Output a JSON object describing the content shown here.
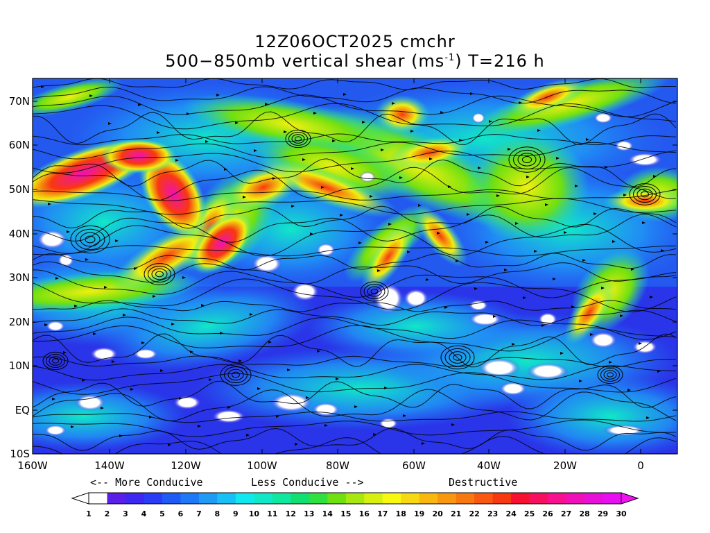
{
  "title": {
    "line1": "12Z06OCT2025 cmchr",
    "line2_prefix": "500−850mb vertical shear (ms",
    "line2_sup": "-1",
    "line2_suffix": ") T=216 h"
  },
  "map": {
    "type": "wind shear map with streamlines",
    "lon_range": [
      "160W",
      "10E"
    ],
    "lat_range": [
      "10S",
      "75N"
    ],
    "lon_ticks": [
      "160W",
      "140W",
      "120W",
      "100W",
      "80W",
      "60W",
      "40W",
      "20W",
      "0"
    ],
    "lat_ticks": [
      "10S",
      "EQ",
      "10N",
      "20N",
      "30N",
      "40N",
      "50N",
      "60N",
      "70N"
    ]
  },
  "legend": {
    "more_conducive": "<-- More Conducive",
    "less_conducive": "Less Conducive -->",
    "destructive": "Destructive",
    "colorbar_labels": [
      "1",
      "2",
      "3",
      "4",
      "5",
      "6",
      "7",
      "8",
      "9",
      "10",
      "11",
      "12",
      "13",
      "14",
      "15",
      "16",
      "17",
      "18",
      "19",
      "20",
      "21",
      "22",
      "23",
      "24",
      "25",
      "26",
      "27",
      "28",
      "29",
      "30"
    ],
    "colorbar_colors": [
      "#ffffff",
      "#5a1fe8",
      "#3c28f0",
      "#2a3cf5",
      "#1f5af5",
      "#1f78f5",
      "#1f9af5",
      "#18c0f5",
      "#10e8f0",
      "#10e8c8",
      "#10e8a0",
      "#10e070",
      "#30e040",
      "#70e010",
      "#a8e810",
      "#d8f010",
      "#f8f810",
      "#f8d810",
      "#f8b810",
      "#f89810",
      "#f87810",
      "#f85810",
      "#f83810",
      "#f81030",
      "#f81060",
      "#f81090",
      "#f010b8",
      "#e810d8",
      "#e810f0"
    ]
  },
  "colors": {
    "low": "#2a2ae0",
    "mid": "#10e8c8",
    "high_yellow": "#f0f010",
    "high_red": "#f83810",
    "extreme": "#f010b8",
    "streamline": "#000000"
  }
}
